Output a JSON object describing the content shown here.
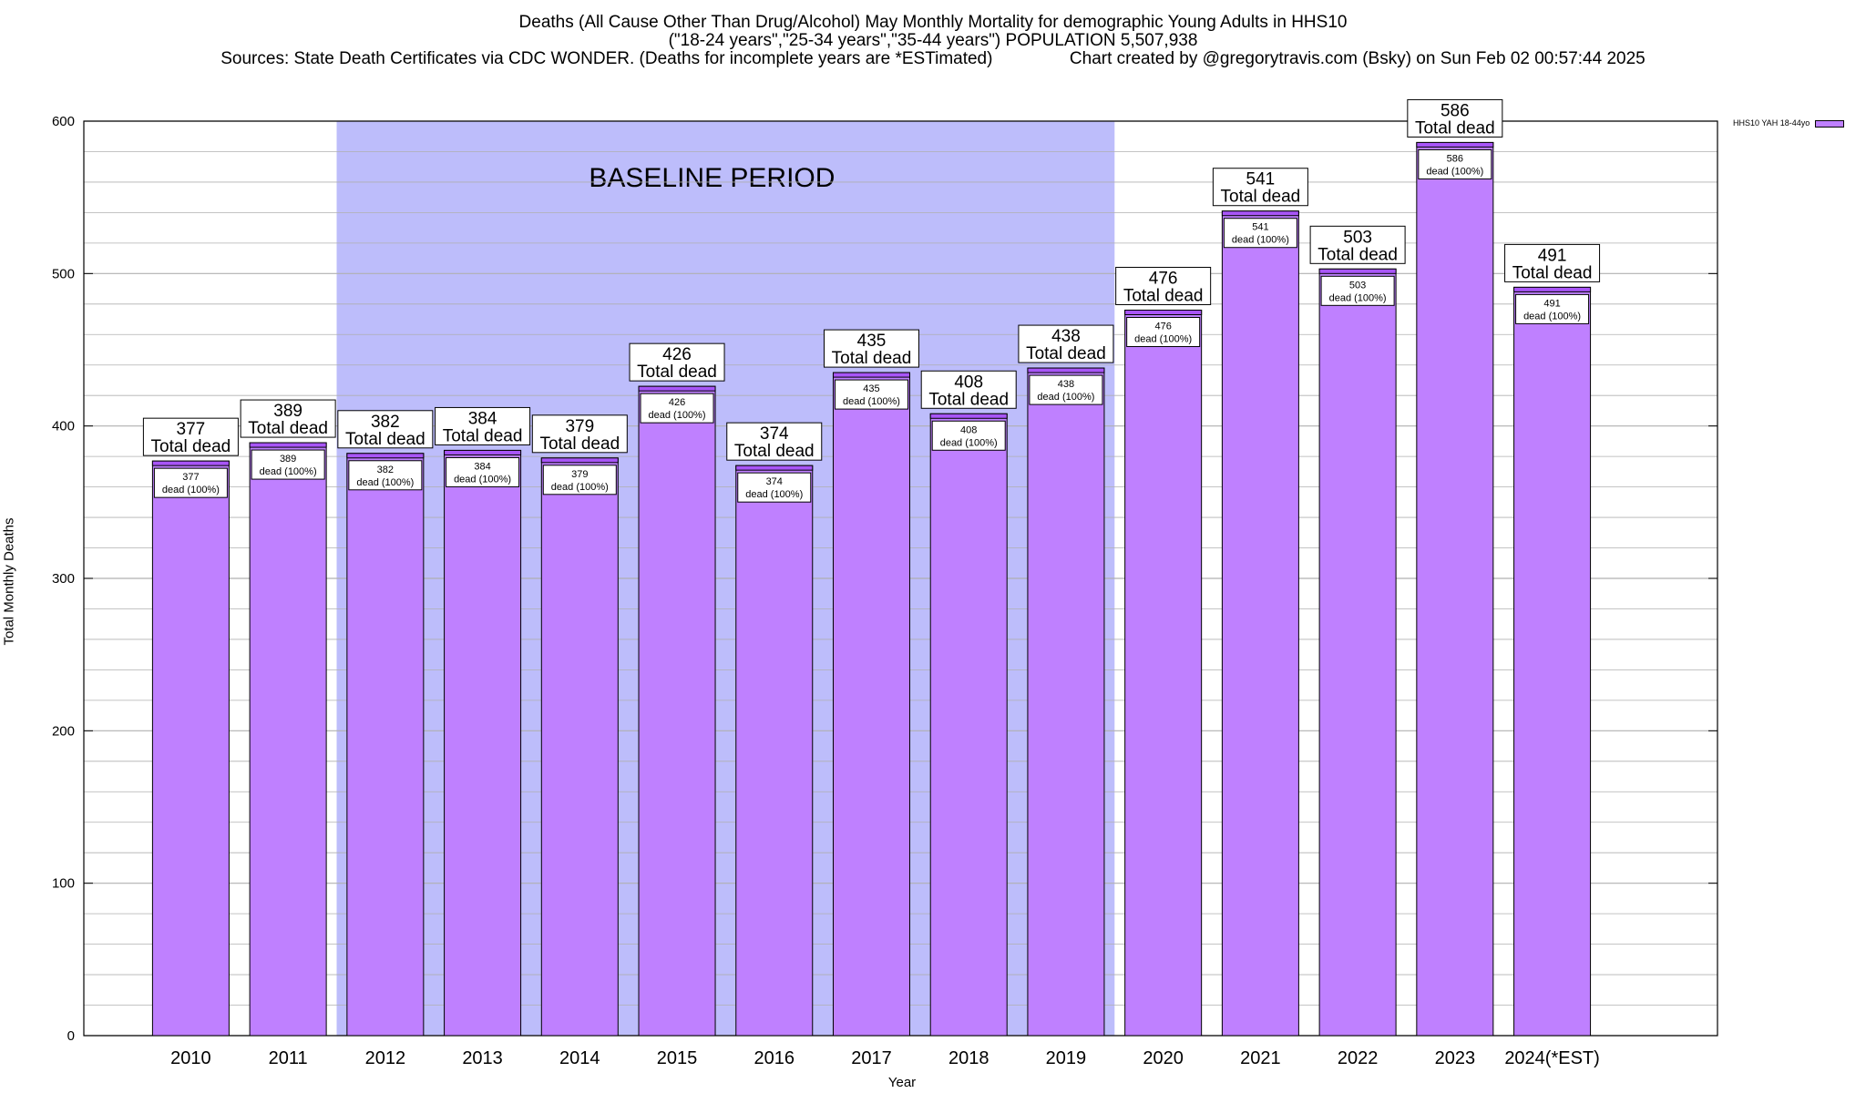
{
  "header": {
    "title_line1": "Deaths (All Cause Other Than Drug/Alcohol) May Monthly Mortality for demographic Young Adults in HHS10",
    "title_line2": "(\"18-24 years\",\"25-34 years\",\"35-44 years\") POPULATION 5,507,938",
    "title_line3": "Sources: State Death Certificates via CDC WONDER. (Deaths for incomplete years are *ESTimated)                Chart created by @gregorytravis.com (Bsky) on Sun Feb 02 00:57:44 2025"
  },
  "chart_data": {
    "type": "bar",
    "categories": [
      "2010",
      "2011",
      "2012",
      "2013",
      "2014",
      "2015",
      "2016",
      "2017",
      "2018",
      "2019",
      "2020",
      "2021",
      "2022",
      "2023",
      "2024(*EST)"
    ],
    "series": [
      {
        "name": "HHS10 YAH 18-44yo",
        "values": [
          377,
          389,
          382,
          384,
          379,
          426,
          374,
          435,
          408,
          438,
          476,
          541,
          503,
          586,
          491
        ]
      }
    ],
    "xlabel": "Year",
    "ylabel": "Total Monthly Deaths",
    "ylim": [
      0,
      600
    ],
    "yticks": [
      0,
      100,
      200,
      300,
      400,
      500,
      600
    ],
    "minor_gridlines_every": 20,
    "grid": true,
    "legend_position": "top-right",
    "bar_label_top_suffix": "Total dead",
    "bar_label_inner_suffix": "dead (100%)",
    "annotation": {
      "text": "BASELINE PERIOD",
      "from_category": "2012",
      "to_category": "2019"
    },
    "colors": {
      "bar_fill": "#bf80ff",
      "bar_cap": "#a855f7",
      "baseline_shade": "#bdbdfb",
      "grid": "#b0b0b0"
    }
  }
}
